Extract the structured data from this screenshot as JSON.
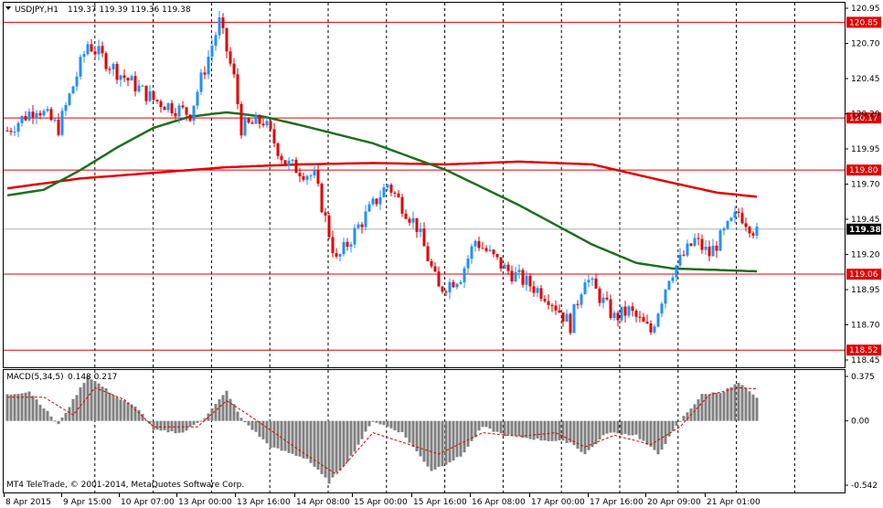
{
  "header": {
    "symbol_label": "USDJPY,H1",
    "ohlc_text": "119.37 119.39 119.36 119.38",
    "dropdown_icon": "triangle-down-icon"
  },
  "macd_header": {
    "label": "MACD(5,34,5)",
    "values_text": "0.148 0.217"
  },
  "copyright": "MT4 TeleTrade, © 2001-2014, MetaQuotes Software Corp.",
  "colors": {
    "bull": "#1e90ff",
    "bear": "#e00000",
    "ma_red": "#e00000",
    "ma_green": "#1f6e1f",
    "level_line": "#e00000",
    "grid": "#000000",
    "macd_hist": "#808080",
    "macd_signal": "#e00000"
  },
  "chart_data": [
    {
      "type": "candlestick",
      "title": "USDJPY,H1",
      "ylim": [
        118.45,
        120.95
      ],
      "y_ticks": [
        "120.95",
        "120.70",
        "120.45",
        "120.20",
        "119.95",
        "119.70",
        "119.45",
        "119.20",
        "118.95",
        "118.70",
        "118.45"
      ],
      "x_tick_labels": [
        "8 Apr 2015",
        "9 Apr 15:00",
        "10 Apr 07:00",
        "13 Apr 00:00",
        "13 Apr 16:00",
        "14 Apr 08:00",
        "15 Apr 00:00",
        "15 Apr 16:00",
        "16 Apr 08:00",
        "17 Apr 00:00",
        "17 Apr 16:00",
        "20 Apr 09:00",
        "21 Apr 01:00"
      ],
      "levels": [
        "120.85",
        "120.17",
        "119.80",
        "119.06",
        "118.52"
      ],
      "current_price": "119.38",
      "anchors": [
        [
          0,
          120.08
        ],
        [
          8,
          120.25
        ],
        [
          14,
          120.1
        ],
        [
          22,
          120.7
        ],
        [
          30,
          120.5
        ],
        [
          40,
          120.3
        ],
        [
          50,
          120.2
        ],
        [
          58,
          120.85
        ],
        [
          62,
          120.45
        ],
        [
          64,
          120.1
        ],
        [
          70,
          120.15
        ],
        [
          76,
          119.85
        ],
        [
          84,
          119.75
        ],
        [
          90,
          119.15
        ],
        [
          96,
          119.4
        ],
        [
          104,
          119.7
        ],
        [
          112,
          119.4
        ],
        [
          118,
          118.95
        ],
        [
          124,
          119.05
        ],
        [
          128,
          119.3
        ],
        [
          132,
          119.2
        ],
        [
          136,
          119.1
        ],
        [
          142,
          119.0
        ],
        [
          148,
          118.9
        ],
        [
          154,
          118.7
        ],
        [
          158,
          119.05
        ],
        [
          162,
          118.9
        ],
        [
          166,
          118.75
        ],
        [
          170,
          118.8
        ],
        [
          176,
          118.65
        ],
        [
          181,
          119.05
        ],
        [
          188,
          119.3
        ],
        [
          192,
          119.2
        ],
        [
          200,
          119.5
        ],
        [
          205,
          119.35
        ]
      ],
      "series": [
        {
          "name": "MA red",
          "points": [
            [
              0,
              119.67
            ],
            [
              20,
              119.74
            ],
            [
              40,
              119.78
            ],
            [
              60,
              119.82
            ],
            [
              80,
              119.84
            ],
            [
              100,
              119.85
            ],
            [
              120,
              119.84
            ],
            [
              140,
              119.86
            ],
            [
              160,
              119.84
            ],
            [
              180,
              119.72
            ],
            [
              194,
              119.64
            ],
            [
              205,
              119.61
            ]
          ]
        },
        {
          "name": "MA green",
          "points": [
            [
              0,
              119.62
            ],
            [
              10,
              119.66
            ],
            [
              20,
              119.8
            ],
            [
              30,
              119.96
            ],
            [
              40,
              120.1
            ],
            [
              50,
              120.18
            ],
            [
              60,
              120.21
            ],
            [
              70,
              120.18
            ],
            [
              80,
              120.12
            ],
            [
              100,
              119.99
            ],
            [
              120,
              119.8
            ],
            [
              140,
              119.55
            ],
            [
              160,
              119.27
            ],
            [
              172,
              119.14
            ],
            [
              182,
              119.1
            ],
            [
              194,
              119.09
            ],
            [
              205,
              119.08
            ]
          ]
        }
      ]
    },
    {
      "type": "histogram",
      "title": "MACD(5,34,5)",
      "ylim": [
        -0.542,
        0.375
      ],
      "y_ticks": [
        "0.375",
        "0.00",
        "-0.542"
      ],
      "anchors": [
        [
          0,
          0.22
        ],
        [
          6,
          0.25
        ],
        [
          14,
          -0.03
        ],
        [
          22,
          0.38
        ],
        [
          30,
          0.2
        ],
        [
          36,
          0.1
        ],
        [
          40,
          -0.08
        ],
        [
          48,
          -0.1
        ],
        [
          54,
          0.03
        ],
        [
          60,
          0.25
        ],
        [
          64,
          0.02
        ],
        [
          72,
          -0.22
        ],
        [
          82,
          -0.32
        ],
        [
          88,
          -0.52
        ],
        [
          94,
          -0.3
        ],
        [
          100,
          0.0
        ],
        [
          108,
          -0.1
        ],
        [
          116,
          -0.42
        ],
        [
          124,
          -0.3
        ],
        [
          130,
          -0.05
        ],
        [
          136,
          -0.12
        ],
        [
          146,
          -0.16
        ],
        [
          154,
          -0.18
        ],
        [
          158,
          -0.28
        ],
        [
          164,
          -0.1
        ],
        [
          172,
          -0.12
        ],
        [
          178,
          -0.28
        ],
        [
          184,
          0.0
        ],
        [
          190,
          0.22
        ],
        [
          196,
          0.25
        ],
        [
          200,
          0.32
        ],
        [
          205,
          0.19
        ]
      ],
      "signal": [
        [
          0,
          0.2
        ],
        [
          10,
          0.2
        ],
        [
          18,
          0.05
        ],
        [
          24,
          0.28
        ],
        [
          32,
          0.18
        ],
        [
          40,
          -0.05
        ],
        [
          52,
          -0.05
        ],
        [
          60,
          0.17
        ],
        [
          66,
          0.05
        ],
        [
          80,
          -0.25
        ],
        [
          90,
          -0.45
        ],
        [
          100,
          -0.1
        ],
        [
          118,
          -0.28
        ],
        [
          130,
          -0.1
        ],
        [
          140,
          -0.13
        ],
        [
          150,
          -0.1
        ],
        [
          158,
          -0.22
        ],
        [
          166,
          -0.12
        ],
        [
          176,
          -0.2
        ],
        [
          184,
          -0.05
        ],
        [
          192,
          0.22
        ],
        [
          200,
          0.28
        ],
        [
          205,
          0.27
        ]
      ]
    }
  ]
}
